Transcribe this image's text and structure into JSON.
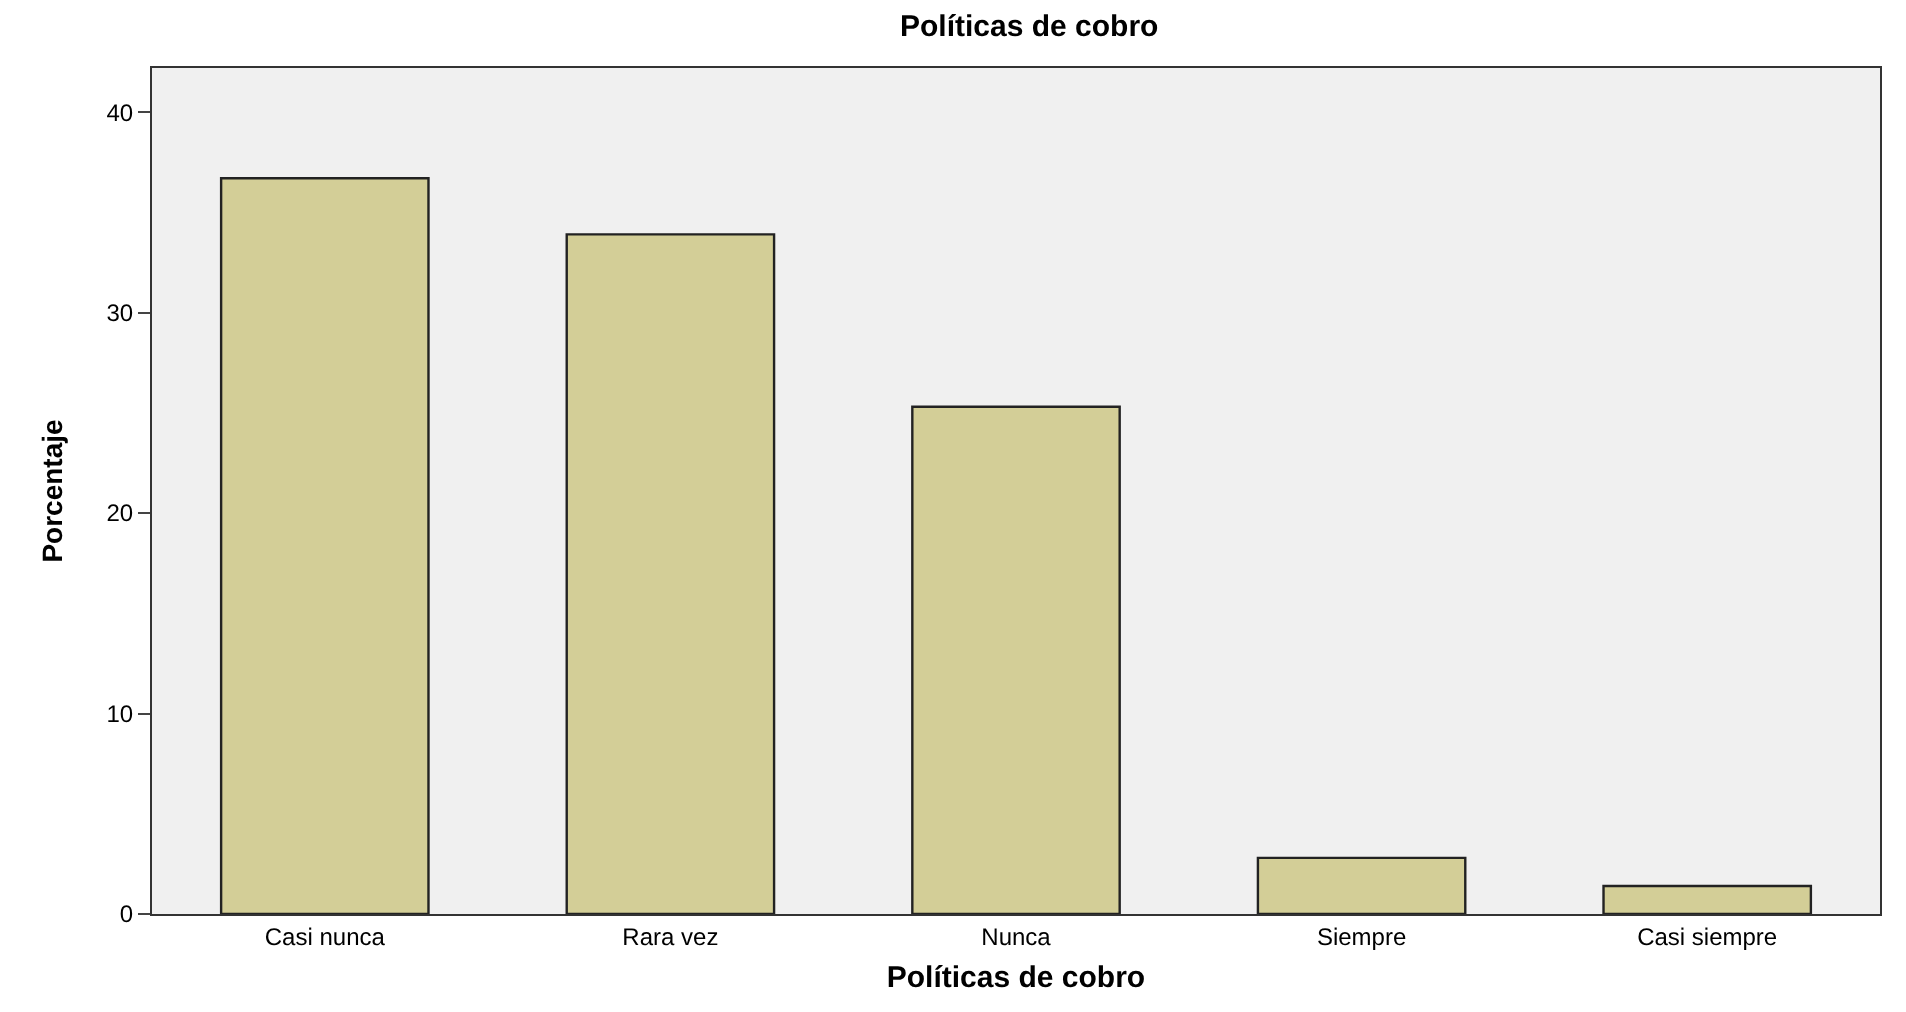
{
  "chart_data": {
    "type": "bar",
    "title": "Políticas de cobro",
    "xlabel": "Políticas de cobro",
    "ylabel": "Porcentaje",
    "categories": [
      "Casi nunca",
      "Rara vez",
      "Nunca",
      "Siempre",
      "Casi siempre"
    ],
    "values": [
      36.7,
      33.9,
      25.3,
      2.8,
      1.4
    ],
    "color": "#d3ce97",
    "ylim": [
      0,
      42.2
    ],
    "yticks": [
      0,
      10,
      20,
      30,
      40
    ],
    "grid": false,
    "legend": false
  }
}
